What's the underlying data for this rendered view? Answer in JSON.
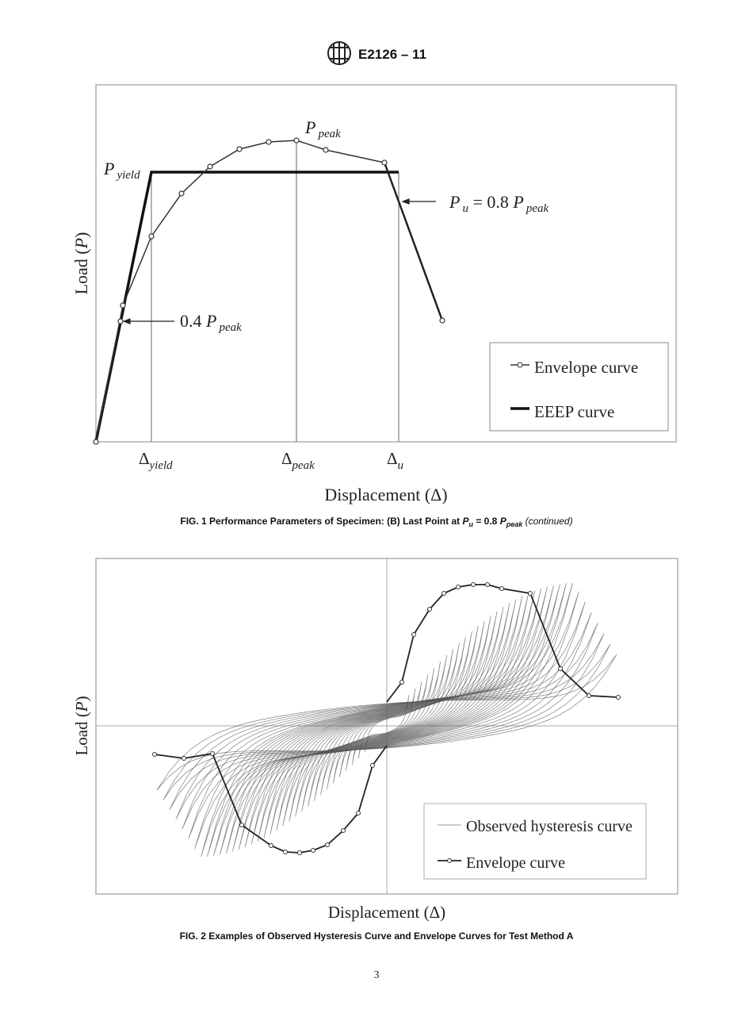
{
  "header": {
    "standard": "E2126 – 11"
  },
  "figure1": {
    "y_label": [
      "Load (",
      "P",
      ")"
    ],
    "x_label": "Displacement (Δ)",
    "annotations": {
      "p_peak": [
        "P",
        "peak"
      ],
      "p_yield": [
        "P",
        "yield"
      ],
      "p_u": [
        "P",
        "u",
        " = 0.8 ",
        "P",
        "peak"
      ],
      "p_04": [
        "0.4 ",
        "P",
        "peak"
      ],
      "d_yield": [
        "Δ",
        "yield"
      ],
      "d_peak": [
        "Δ",
        "peak"
      ],
      "d_u": [
        "Δ",
        "u"
      ]
    },
    "legend": [
      "Envelope curve",
      "EEEP curve"
    ],
    "caption": [
      "FIG. 1 Performance Parameters of Specimen: (B) Last Point at ",
      "P",
      "u",
      " = 0.8 ",
      "P",
      "peak",
      " (continued)"
    ]
  },
  "figure2": {
    "y_label": [
      "Load (",
      "P",
      ")"
    ],
    "x_label": "Displacement (Δ)",
    "legend": [
      "Observed hysteresis curve",
      "Envelope curve"
    ],
    "caption": "FIG. 2 Examples of Observed Hysteresis Curve and Envelope Curves for Test Method A"
  },
  "page_number": "3"
}
